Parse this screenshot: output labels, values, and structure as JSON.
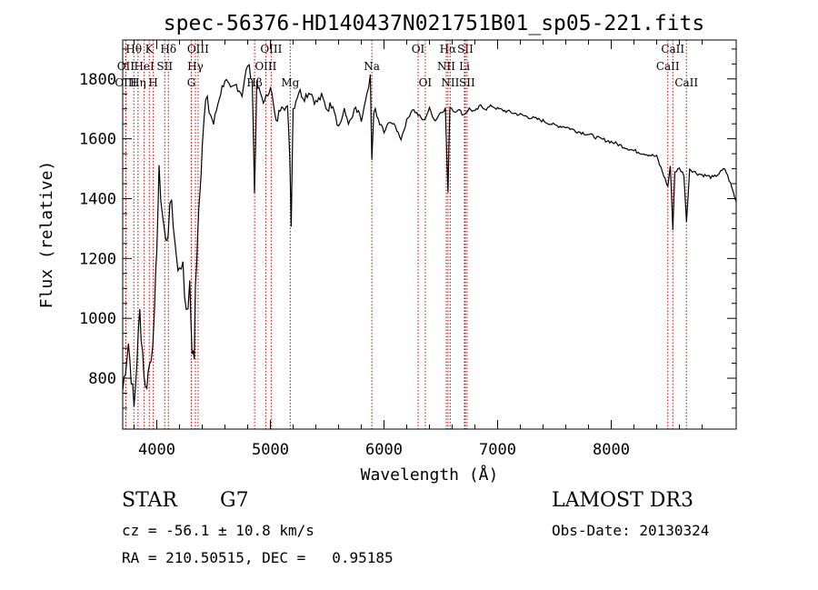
{
  "chart_data": {
    "type": "line",
    "title": "spec-56376-HD140437N021751B01_sp05-221.fits",
    "xlabel": "Wavelength (Å)",
    "ylabel": "Flux (relative)",
    "xlim": [
      3700,
      9100
    ],
    "ylim": [
      630,
      1930
    ],
    "x_ticks": [
      4000,
      5000,
      6000,
      7000,
      8000
    ],
    "y_ticks": [
      800,
      1000,
      1200,
      1400,
      1600,
      1800
    ],
    "grid": false,
    "series": [
      {
        "x": [
          3700,
          3750,
          3800,
          3850,
          3900,
          3950,
          3980,
          4000,
          4020,
          4050,
          4080,
          4100,
          4130,
          4160,
          4200,
          4230,
          4260,
          4290,
          4310,
          4330,
          4340,
          4360,
          4380,
          4400,
          4430,
          4460,
          4500,
          4550,
          4600,
          4650,
          4700,
          4750,
          4800,
          4840,
          4860,
          4880,
          4900,
          4950,
          5000,
          5050,
          5100,
          5150,
          5170,
          5183,
          5200,
          5250,
          5300,
          5350,
          5400,
          5450,
          5500,
          5550,
          5600,
          5650,
          5700,
          5750,
          5800,
          5850,
          5880,
          5893,
          5910,
          5950,
          6000,
          6050,
          6100,
          6150,
          6200,
          6250,
          6300,
          6350,
          6400,
          6450,
          6500,
          6540,
          6563,
          6580,
          6620,
          6650,
          6700,
          6750,
          6800,
          6850,
          6900,
          6950,
          7000,
          7100,
          7200,
          7300,
          7400,
          7500,
          7600,
          7700,
          7800,
          7900,
          8000,
          8100,
          8200,
          8300,
          8400,
          8450,
          8498,
          8520,
          8542,
          8560,
          8600,
          8640,
          8662,
          8690,
          8750,
          8800,
          8900,
          9000,
          9050,
          9100
        ],
        "y": [
          760,
          920,
          700,
          1020,
          760,
          880,
          1000,
          1250,
          1480,
          1350,
          1250,
          1300,
          1400,
          1250,
          1150,
          1200,
          1000,
          1100,
          900,
          870,
          1100,
          1300,
          1450,
          1580,
          1720,
          1700,
          1650,
          1740,
          1800,
          1760,
          1780,
          1750,
          1850,
          1800,
          1420,
          1780,
          1760,
          1720,
          1780,
          1650,
          1720,
          1700,
          1550,
          1320,
          1700,
          1760,
          1740,
          1760,
          1720,
          1740,
          1700,
          1720,
          1640,
          1690,
          1650,
          1700,
          1660,
          1740,
          1800,
          1520,
          1700,
          1660,
          1620,
          1660,
          1640,
          1600,
          1660,
          1700,
          1680,
          1660,
          1700,
          1660,
          1690,
          1700,
          1420,
          1710,
          1690,
          1700,
          1680,
          1700,
          1690,
          1710,
          1700,
          1710,
          1700,
          1690,
          1680,
          1670,
          1660,
          1645,
          1640,
          1625,
          1615,
          1600,
          1590,
          1575,
          1560,
          1550,
          1540,
          1490,
          1440,
          1510,
          1300,
          1490,
          1500,
          1480,
          1320,
          1500,
          1485,
          1480,
          1470,
          1500,
          1450,
          1390
        ]
      }
    ],
    "lines": [
      {
        "label": "Hθ",
        "x": 3798,
        "row": 1
      },
      {
        "label": "OII",
        "x": 3727,
        "row": 2
      },
      {
        "label": "OIII",
        "x": 3727,
        "row": 3
      },
      {
        "label": "HeI",
        "x": 3889,
        "row": 2
      },
      {
        "label": "Hη",
        "x": 3835,
        "row": 3
      },
      {
        "label": "K",
        "x": 3934,
        "row": 1
      },
      {
        "label": "H",
        "x": 3969,
        "row": 3
      },
      {
        "label": "SII",
        "x": 4070,
        "row": 2
      },
      {
        "label": "Hδ",
        "x": 4102,
        "row": 1
      },
      {
        "label": "OIII",
        "x": 4363,
        "row": 1
      },
      {
        "label": "Hγ",
        "x": 4340,
        "row": 2
      },
      {
        "label": "G",
        "x": 4304,
        "row": 3
      },
      {
        "label": "OIII",
        "x": 5007,
        "row": 1
      },
      {
        "label": "OIII",
        "x": 4959,
        "row": 2
      },
      {
        "label": "Hβ",
        "x": 4861,
        "row": 3
      },
      {
        "label": "Mg",
        "x": 5175,
        "row": 3
      },
      {
        "label": "Na",
        "x": 5893,
        "row": 2
      },
      {
        "label": "OI",
        "x": 6300,
        "row": 1
      },
      {
        "label": "OI",
        "x": 6363,
        "row": 3
      },
      {
        "label": "Hα",
        "x": 6563,
        "row": 1
      },
      {
        "label": "SII",
        "x": 6716,
        "row": 1
      },
      {
        "label": "NII",
        "x": 6548,
        "row": 2
      },
      {
        "label": "Li",
        "x": 6708,
        "row": 2
      },
      {
        "label": "NII",
        "x": 6583,
        "row": 3
      },
      {
        "label": "SII",
        "x": 6731,
        "row": 3
      },
      {
        "label": "CaII",
        "x": 8542,
        "row": 1
      },
      {
        "label": "CaII",
        "x": 8498,
        "row": 2
      },
      {
        "label": "CaII",
        "x": 8662,
        "row": 3
      }
    ]
  },
  "info": {
    "class_label": "STAR",
    "subclass": "G7",
    "survey": "LAMOST DR3",
    "redshift": "cz = -56.1 ± 10.8 km/s",
    "obs_date": "Obs-Date: 20130324",
    "coords": "RA = 210.50515, DEC =   0.95185"
  },
  "colors": {
    "spectrum": "#000000",
    "line_marker": "#cc0000",
    "axes": "#000000"
  }
}
